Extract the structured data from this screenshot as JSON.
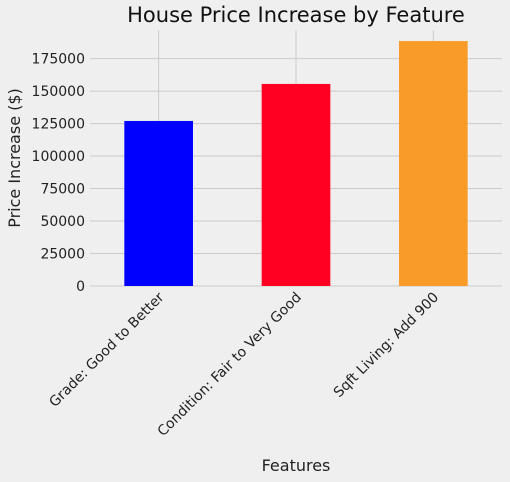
{
  "chart_data": {
    "type": "bar",
    "title": "House Price Increase by Feature",
    "xlabel": "Features",
    "ylabel": "Price Increase ($)",
    "categories": [
      "Grade: Good to Better",
      "Condition: Fair to Very Good",
      "Sqft Living: Add 900"
    ],
    "values": [
      127000,
      155500,
      188500
    ],
    "colors": [
      "#0000ff",
      "#ff0022",
      "#f99b28"
    ],
    "ylim": [
      0,
      197000
    ],
    "yticks": [
      0,
      25000,
      50000,
      75000,
      100000,
      125000,
      150000,
      175000
    ],
    "grid": true,
    "legend": "none"
  }
}
